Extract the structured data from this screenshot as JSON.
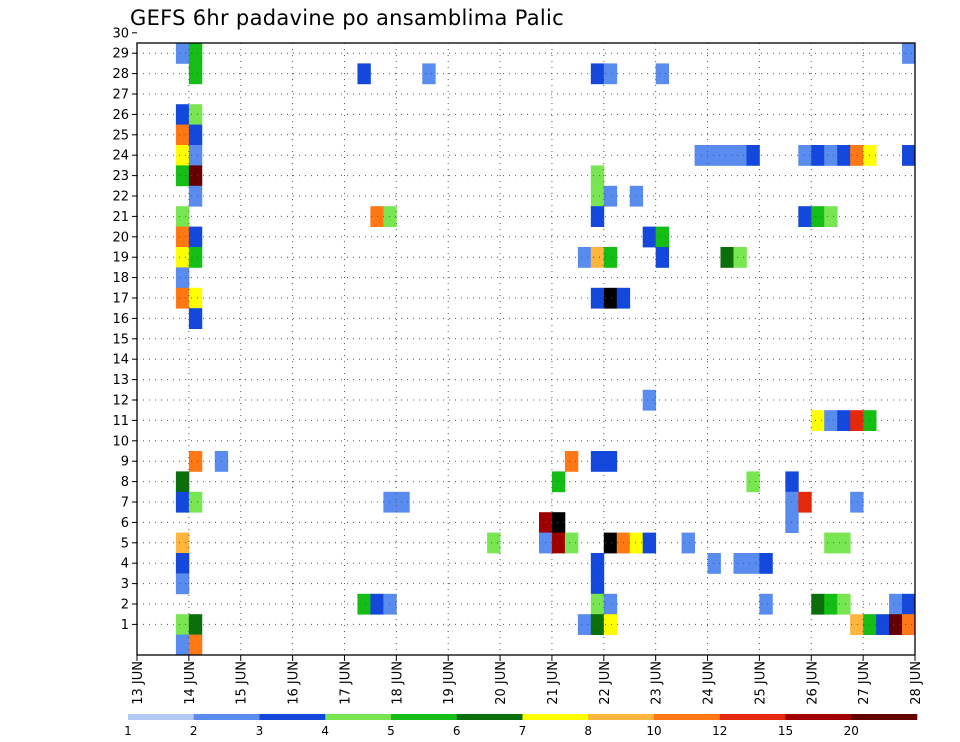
{
  "chart_data": {
    "type": "heatmap",
    "title": "GEFS 6hr padavine po ansamblima Palic",
    "x_tick_labels": [
      "13 JUN",
      "14 JUN",
      "15 JUN",
      "16 JUN",
      "17 JUN",
      "18 JUN",
      "19 JUN",
      "20 JUN",
      "21 JUN",
      "22 JUN",
      "23 JUN",
      "24 JUN",
      "25 JUN",
      "26 JUN",
      "27 JUN",
      "28 JUN"
    ],
    "y_tick_labels": [
      "1",
      "2",
      "3",
      "4",
      "5",
      "6",
      "7",
      "8",
      "9",
      "10",
      "11",
      "12",
      "13",
      "14",
      "15",
      "16",
      "17",
      "18",
      "19",
      "20",
      "21",
      "22",
      "23",
      "24",
      "25",
      "26",
      "27",
      "28",
      "29",
      "30"
    ],
    "xlim": [
      "13 JUN 00Z",
      "28 JUN 00Z"
    ],
    "ylim": [
      0,
      30
    ],
    "grid": "dotted",
    "time_step_hours": 6,
    "legend_placement": "bottom",
    "legend": {
      "labels": [
        "1",
        "2",
        "3",
        "4",
        "5",
        "6",
        "7",
        "8",
        "10",
        "12",
        "15",
        "20"
      ],
      "colors": [
        "#b4c8f8",
        "#5a8cf0",
        "#1448dc",
        "#78e650",
        "#14be14",
        "#0a6e0a",
        "#ffff00",
        "#ffb43c",
        "#ff7814",
        "#e6280a",
        "#a00000",
        "#640000"
      ]
    },
    "cells": [
      {
        "member": 30,
        "time": "14 JUN 00Z",
        "bin": 4
      },
      {
        "member": 30,
        "time": "14 JUN 06Z",
        "bin": 3
      },
      {
        "member": 30,
        "time": "21 JUN 06Z",
        "bin": 2
      },
      {
        "member": 30,
        "time": "24 JUN 00Z",
        "bin": 4
      },
      {
        "member": 30,
        "time": "24 JUN 06Z",
        "bin": 2
      },
      {
        "member": 30,
        "time": "26 JUN 00Z",
        "bin": 3
      },
      {
        "member": 29,
        "time": "13 JUN 18Z",
        "bin": 1
      },
      {
        "member": 29,
        "time": "14 JUN 00Z",
        "bin": 4
      },
      {
        "member": 29,
        "time": "27 JUN 18Z",
        "bin": 1
      },
      {
        "member": 28,
        "time": "14 JUN 00Z",
        "bin": 4
      },
      {
        "member": 28,
        "time": "17 JUN 06Z",
        "bin": 2
      },
      {
        "member": 28,
        "time": "18 JUN 12Z",
        "bin": 1
      },
      {
        "member": 28,
        "time": "21 JUN 18Z",
        "bin": 2
      },
      {
        "member": 28,
        "time": "22 JUN 00Z",
        "bin": 1
      },
      {
        "member": 28,
        "time": "23 JUN 00Z",
        "bin": 1
      },
      {
        "member": 26,
        "time": "13 JUN 18Z",
        "bin": 2
      },
      {
        "member": 26,
        "time": "14 JUN 00Z",
        "bin": 3
      },
      {
        "member": 25,
        "time": "13 JUN 18Z",
        "bin": 8
      },
      {
        "member": 25,
        "time": "14 JUN 00Z",
        "bin": 2
      },
      {
        "member": 24,
        "time": "13 JUN 18Z",
        "bin": 6
      },
      {
        "member": 24,
        "time": "14 JUN 00Z",
        "bin": 1
      },
      {
        "member": 24,
        "time": "23 JUN 18Z",
        "bin": 1
      },
      {
        "member": 24,
        "time": "24 JUN 00Z",
        "bin": 1
      },
      {
        "member": 24,
        "time": "24 JUN 06Z",
        "bin": 1
      },
      {
        "member": 24,
        "time": "24 JUN 12Z",
        "bin": 1
      },
      {
        "member": 24,
        "time": "24 JUN 18Z",
        "bin": 2
      },
      {
        "member": 24,
        "time": "25 JUN 18Z",
        "bin": 1
      },
      {
        "member": 24,
        "time": "26 JUN 00Z",
        "bin": 2
      },
      {
        "member": 24,
        "time": "26 JUN 06Z",
        "bin": 1
      },
      {
        "member": 24,
        "time": "26 JUN 12Z",
        "bin": 2
      },
      {
        "member": 24,
        "time": "26 JUN 18Z",
        "bin": 8
      },
      {
        "member": 24,
        "time": "27 JUN 00Z",
        "bin": 6
      },
      {
        "member": 24,
        "time": "27 JUN 18Z",
        "bin": 2
      },
      {
        "member": 23,
        "time": "13 JUN 18Z",
        "bin": 4
      },
      {
        "member": 23,
        "time": "14 JUN 00Z",
        "bin": 11
      },
      {
        "member": 23,
        "time": "21 JUN 18Z",
        "bin": 3
      },
      {
        "member": 22,
        "time": "14 JUN 00Z",
        "bin": 1
      },
      {
        "member": 22,
        "time": "21 JUN 18Z",
        "bin": 3
      },
      {
        "member": 22,
        "time": "22 JUN 00Z",
        "bin": 1
      },
      {
        "member": 22,
        "time": "22 JUN 12Z",
        "bin": 1
      },
      {
        "member": 21,
        "time": "13 JUN 18Z",
        "bin": 3
      },
      {
        "member": 21,
        "time": "17 JUN 12Z",
        "bin": 8
      },
      {
        "member": 21,
        "time": "17 JUN 18Z",
        "bin": 3
      },
      {
        "member": 21,
        "time": "21 JUN 18Z",
        "bin": 2
      },
      {
        "member": 21,
        "time": "25 JUN 18Z",
        "bin": 2
      },
      {
        "member": 21,
        "time": "26 JUN 00Z",
        "bin": 4
      },
      {
        "member": 21,
        "time": "26 JUN 06Z",
        "bin": 3
      },
      {
        "member": 20,
        "time": "13 JUN 18Z",
        "bin": 8
      },
      {
        "member": 20,
        "time": "14 JUN 00Z",
        "bin": 2
      },
      {
        "member": 20,
        "time": "22 JUN 18Z",
        "bin": 2
      },
      {
        "member": 20,
        "time": "23 JUN 00Z",
        "bin": 4
      },
      {
        "member": 19,
        "time": "13 JUN 18Z",
        "bin": 6
      },
      {
        "member": 19,
        "time": "14 JUN 00Z",
        "bin": 4
      },
      {
        "member": 19,
        "time": "21 JUN 12Z",
        "bin": 1
      },
      {
        "member": 19,
        "time": "21 JUN 18Z",
        "bin": 7
      },
      {
        "member": 19,
        "time": "22 JUN 00Z",
        "bin": 4
      },
      {
        "member": 19,
        "time": "23 JUN 00Z",
        "bin": 2
      },
      {
        "member": 19,
        "time": "24 JUN 06Z",
        "bin": 5
      },
      {
        "member": 19,
        "time": "24 JUN 12Z",
        "bin": 3
      },
      {
        "member": 18,
        "time": "13 JUN 18Z",
        "bin": 1
      },
      {
        "member": 17,
        "time": "13 JUN 18Z",
        "bin": 8
      },
      {
        "member": 17,
        "time": "14 JUN 00Z",
        "bin": 6
      },
      {
        "member": 17,
        "time": "21 JUN 18Z",
        "bin": 2
      },
      {
        "member": 17,
        "time": "22 JUN 00Z",
        "bin": 12
      },
      {
        "member": 17,
        "time": "22 JUN 06Z",
        "bin": 2
      },
      {
        "member": 16,
        "time": "14 JUN 00Z",
        "bin": 2
      },
      {
        "member": 12,
        "time": "22 JUN 18Z",
        "bin": 1
      },
      {
        "member": 11,
        "time": "26 JUN 00Z",
        "bin": 6
      },
      {
        "member": 11,
        "time": "26 JUN 06Z",
        "bin": 1
      },
      {
        "member": 11,
        "time": "26 JUN 12Z",
        "bin": 2
      },
      {
        "member": 11,
        "time": "26 JUN 18Z",
        "bin": 9
      },
      {
        "member": 11,
        "time": "27 JUN 00Z",
        "bin": 4
      },
      {
        "member": 9,
        "time": "14 JUN 00Z",
        "bin": 8
      },
      {
        "member": 9,
        "time": "14 JUN 12Z",
        "bin": 1
      },
      {
        "member": 9,
        "time": "21 JUN 06Z",
        "bin": 8
      },
      {
        "member": 9,
        "time": "21 JUN 18Z",
        "bin": 2
      },
      {
        "member": 9,
        "time": "22 JUN 00Z",
        "bin": 2
      },
      {
        "member": 8,
        "time": "13 JUN 18Z",
        "bin": 5
      },
      {
        "member": 8,
        "time": "21 JUN 00Z",
        "bin": 4
      },
      {
        "member": 8,
        "time": "24 JUN 18Z",
        "bin": 3
      },
      {
        "member": 8,
        "time": "25 JUN 12Z",
        "bin": 2
      },
      {
        "member": 7,
        "time": "13 JUN 18Z",
        "bin": 2
      },
      {
        "member": 7,
        "time": "14 JUN 00Z",
        "bin": 3
      },
      {
        "member": 7,
        "time": "17 JUN 18Z",
        "bin": 1
      },
      {
        "member": 7,
        "time": "18 JUN 00Z",
        "bin": 1
      },
      {
        "member": 7,
        "time": "25 JUN 12Z",
        "bin": 1
      },
      {
        "member": 7,
        "time": "25 JUN 18Z",
        "bin": 9
      },
      {
        "member": 7,
        "time": "26 JUN 18Z",
        "bin": 1
      },
      {
        "member": 6,
        "time": "20 JUN 18Z",
        "bin": 10
      },
      {
        "member": 6,
        "time": "21 JUN 00Z",
        "bin": 12
      },
      {
        "member": 6,
        "time": "25 JUN 12Z",
        "bin": 1
      },
      {
        "member": 5,
        "time": "13 JUN 18Z",
        "bin": 7
      },
      {
        "member": 5,
        "time": "19 JUN 18Z",
        "bin": 3
      },
      {
        "member": 5,
        "time": "20 JUN 18Z",
        "bin": 1
      },
      {
        "member": 5,
        "time": "21 JUN 00Z",
        "bin": 10
      },
      {
        "member": 5,
        "time": "21 JUN 06Z",
        "bin": 3
      },
      {
        "member": 5,
        "time": "22 JUN 00Z",
        "bin": 12
      },
      {
        "member": 5,
        "time": "22 JUN 06Z",
        "bin": 8
      },
      {
        "member": 5,
        "time": "22 JUN 12Z",
        "bin": 6
      },
      {
        "member": 5,
        "time": "22 JUN 18Z",
        "bin": 2
      },
      {
        "member": 5,
        "time": "23 JUN 12Z",
        "bin": 1
      },
      {
        "member": 5,
        "time": "26 JUN 06Z",
        "bin": 3
      },
      {
        "member": 5,
        "time": "26 JUN 12Z",
        "bin": 3
      },
      {
        "member": 4,
        "time": "13 JUN 18Z",
        "bin": 2
      },
      {
        "member": 4,
        "time": "21 JUN 18Z",
        "bin": 2
      },
      {
        "member": 4,
        "time": "24 JUN 00Z",
        "bin": 1
      },
      {
        "member": 4,
        "time": "24 JUN 12Z",
        "bin": 1
      },
      {
        "member": 4,
        "time": "24 JUN 18Z",
        "bin": 1
      },
      {
        "member": 4,
        "time": "25 JUN 00Z",
        "bin": 2
      },
      {
        "member": 3,
        "time": "13 JUN 18Z",
        "bin": 1
      },
      {
        "member": 3,
        "time": "21 JUN 18Z",
        "bin": 2
      },
      {
        "member": 2,
        "time": "17 JUN 06Z",
        "bin": 4
      },
      {
        "member": 2,
        "time": "17 JUN 12Z",
        "bin": 2
      },
      {
        "member": 2,
        "time": "17 JUN 18Z",
        "bin": 1
      },
      {
        "member": 2,
        "time": "21 JUN 18Z",
        "bin": 3
      },
      {
        "member": 2,
        "time": "22 JUN 00Z",
        "bin": 1
      },
      {
        "member": 2,
        "time": "25 JUN 00Z",
        "bin": 1
      },
      {
        "member": 2,
        "time": "26 JUN 00Z",
        "bin": 5
      },
      {
        "member": 2,
        "time": "26 JUN 06Z",
        "bin": 4
      },
      {
        "member": 2,
        "time": "26 JUN 12Z",
        "bin": 3
      },
      {
        "member": 2,
        "time": "27 JUN 12Z",
        "bin": 1
      },
      {
        "member": 2,
        "time": "27 JUN 18Z",
        "bin": 2
      },
      {
        "member": 1,
        "time": "13 JUN 18Z",
        "bin": 3
      },
      {
        "member": 1,
        "time": "14 JUN 00Z",
        "bin": 5
      },
      {
        "member": 1,
        "time": "21 JUN 12Z",
        "bin": 1
      },
      {
        "member": 1,
        "time": "21 JUN 18Z",
        "bin": 5
      },
      {
        "member": 1,
        "time": "22 JUN 00Z",
        "bin": 6
      },
      {
        "member": 1,
        "time": "26 JUN 18Z",
        "bin": 7
      },
      {
        "member": 1,
        "time": "27 JUN 00Z",
        "bin": 4
      },
      {
        "member": 1,
        "time": "27 JUN 06Z",
        "bin": 2
      },
      {
        "member": 1,
        "time": "27 JUN 12Z",
        "bin": 11
      },
      {
        "member": 1,
        "time": "27 JUN 18Z",
        "bin": 8
      },
      {
        "member": 0,
        "time": "13 JUN 18Z",
        "bin": 1
      },
      {
        "member": 0,
        "time": "14 JUN 00Z",
        "bin": 8
      }
    ]
  }
}
